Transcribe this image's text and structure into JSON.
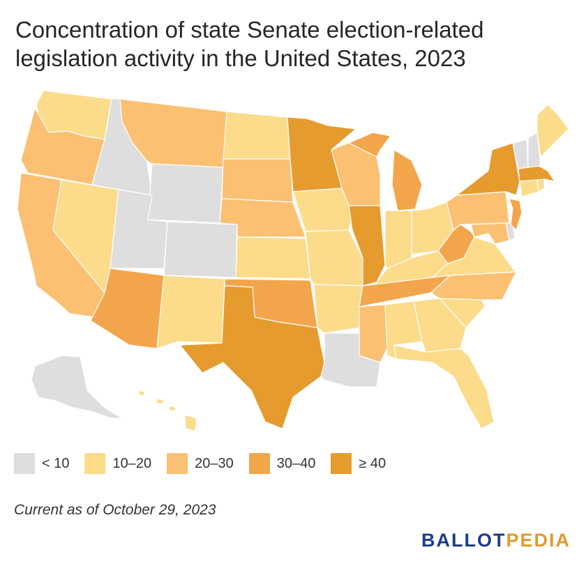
{
  "title": "Concentration of state Senate election-related legislation activity in the United States, 2023",
  "legend": [
    {
      "label": "< 10",
      "color": "#dedede"
    },
    {
      "label": "10–20",
      "color": "#fcdb8b"
    },
    {
      "label": "20–30",
      "color": "#fbc071"
    },
    {
      "label": "30–40",
      "color": "#f3a54c"
    },
    {
      "label": "≥ 40",
      "color": "#e69b2f"
    }
  ],
  "footnote": "Current as of October 29, 2023",
  "logo": {
    "part1": "BALLOT",
    "part2": "PEDIA"
  },
  "states": {
    "WA": 1,
    "OR": 2,
    "CA": 2,
    "NV": 1,
    "ID": 0,
    "MT": 2,
    "WY": 0,
    "UT": 0,
    "CO": 0,
    "AZ": 3,
    "NM": 1,
    "ND": 1,
    "SD": 2,
    "NE": 2,
    "KS": 1,
    "OK": 3,
    "TX": 4,
    "MN": 4,
    "IA": 1,
    "MO": 1,
    "AR": 1,
    "LA": 0,
    "WI": 2,
    "IL": 4,
    "MI": 3,
    "IN": 1,
    "OH": 1,
    "KY": 1,
    "TN": 3,
    "MS": 2,
    "AL": 1,
    "GA": 1,
    "FL": 1,
    "SC": 1,
    "NC": 2,
    "VA": 1,
    "WV": 3,
    "PA": 2,
    "NY": 4,
    "VT": 0,
    "NH": 0,
    "ME": 1,
    "MA": 4,
    "RI": 1,
    "CT": 1,
    "NJ": 3,
    "DE": 0,
    "MD": 2,
    "AK": 0,
    "HI": 1
  }
}
